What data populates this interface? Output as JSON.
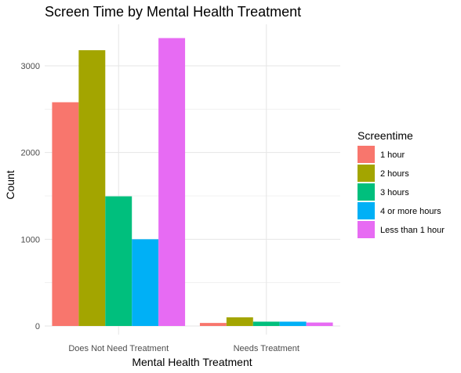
{
  "chart_data": {
    "type": "bar",
    "title": "Screen Time by Mental Health Treatment",
    "xlabel": "Mental Health Treatment",
    "ylabel": "Count",
    "categories": [
      "Does Not Need Treatment",
      "Needs Treatment"
    ],
    "series": [
      {
        "name": "1 hour",
        "color": "#F8766D",
        "values": [
          2580,
          35
        ]
      },
      {
        "name": "2 hours",
        "color": "#A3A500",
        "values": [
          3180,
          100
        ]
      },
      {
        "name": "3 hours",
        "color": "#00BF7D",
        "values": [
          1495,
          50
        ]
      },
      {
        "name": "4 or more hours",
        "color": "#00B0F6",
        "values": [
          1000,
          50
        ]
      },
      {
        "name": "Less than 1 hour",
        "color": "#E76BF3",
        "values": [
          3320,
          40
        ]
      }
    ],
    "ylim": [
      0,
      3450
    ],
    "yticks": [
      0,
      1000,
      2000,
      3000
    ],
    "grid": true,
    "legend": {
      "title": "Screentime",
      "position": "right"
    }
  }
}
